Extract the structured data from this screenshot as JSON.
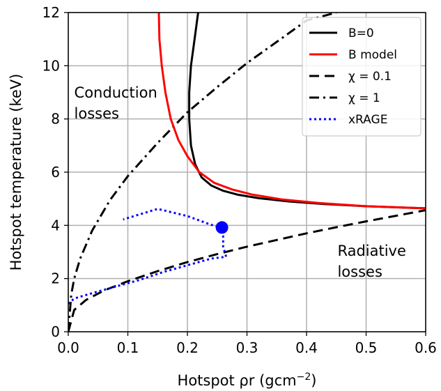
{
  "chart_data": {
    "type": "line",
    "xlabel": "Hotspot ρr (gcm",
    "xlabel_superscript": "−2",
    "xlabel_close": ")",
    "ylabel": "Hotspot temperature (keV)",
    "xlim": [
      0,
      0.6
    ],
    "ylim": [
      0,
      12
    ],
    "xticks": [
      0.0,
      0.1,
      0.2,
      0.3,
      0.4,
      0.5,
      0.6
    ],
    "xtick_labels": [
      "0.0",
      "0.1",
      "0.2",
      "0.3",
      "0.4",
      "0.5",
      "0.6"
    ],
    "yticks": [
      0,
      2,
      4,
      6,
      8,
      10,
      12
    ],
    "ytick_labels": [
      "0",
      "2",
      "4",
      "6",
      "8",
      "10",
      "12"
    ],
    "grid": true,
    "legend_position": "top-right",
    "annotations": [
      {
        "lines": [
          "Conduction",
          "losses"
        ],
        "x": 0.01,
        "y": 8.8
      },
      {
        "lines": [
          "Radiative",
          "losses"
        ],
        "x": 0.452,
        "y": 2.85
      }
    ],
    "series": [
      {
        "name": "B=0",
        "color": "#000000",
        "style": "solid",
        "x": [
          0.218,
          0.212,
          0.206,
          0.203,
          0.203,
          0.206,
          0.213,
          0.224,
          0.24,
          0.26,
          0.285,
          0.32,
          0.37,
          0.43,
          0.5,
          0.56,
          0.6
        ],
        "y": [
          12.0,
          11.0,
          10.0,
          9.0,
          8.0,
          7.0,
          6.3,
          5.8,
          5.5,
          5.3,
          5.15,
          5.02,
          4.9,
          4.8,
          4.72,
          4.67,
          4.64
        ]
      },
      {
        "name": "B model",
        "color": "#ff0000",
        "style": "solid",
        "x": [
          0.152,
          0.153,
          0.157,
          0.163,
          0.172,
          0.185,
          0.2,
          0.22,
          0.245,
          0.275,
          0.31,
          0.36,
          0.42,
          0.5,
          0.6
        ],
        "y": [
          12.0,
          11.0,
          10.0,
          9.0,
          8.0,
          7.2,
          6.6,
          6.0,
          5.6,
          5.35,
          5.15,
          4.97,
          4.84,
          4.72,
          4.64
        ]
      },
      {
        "name": "χ = 0.1",
        "color": "#000000",
        "style": "dashed",
        "x": [
          0.0,
          0.01,
          0.03,
          0.06,
          0.1,
          0.15,
          0.2,
          0.25,
          0.3,
          0.35,
          0.4,
          0.45,
          0.5,
          0.55,
          0.6
        ],
        "y": [
          0.0,
          0.82,
          1.2,
          1.55,
          1.9,
          2.28,
          2.62,
          2.92,
          3.2,
          3.45,
          3.7,
          3.93,
          4.15,
          4.36,
          4.57
        ]
      },
      {
        "name": "χ = 1",
        "color": "#000000",
        "style": "dashdot",
        "x": [
          0.0,
          0.005,
          0.01,
          0.02,
          0.04,
          0.07,
          0.1,
          0.15,
          0.2,
          0.25,
          0.3,
          0.35,
          0.4,
          0.45
        ],
        "y": [
          0.0,
          1.4,
          2.0,
          2.75,
          3.8,
          4.95,
          5.85,
          7.1,
          8.25,
          9.2,
          10.1,
          10.9,
          11.7,
          12.0
        ]
      },
      {
        "name": "xRAGE",
        "color": "#0000ff",
        "style": "dotted",
        "x": [
          0.0,
          0.01,
          0.04,
          0.08,
          0.12,
          0.16,
          0.2,
          0.24,
          0.265,
          0.26,
          0.26,
          0.258,
          0.24,
          0.2,
          0.15,
          0.092
        ],
        "y": [
          1.05,
          1.25,
          1.45,
          1.7,
          1.95,
          2.25,
          2.5,
          2.75,
          2.82,
          3.2,
          3.6,
          3.92,
          4.02,
          4.35,
          4.62,
          4.22
        ]
      }
    ],
    "marker": {
      "x": 0.258,
      "y": 3.92,
      "color": "#0000ff"
    }
  }
}
